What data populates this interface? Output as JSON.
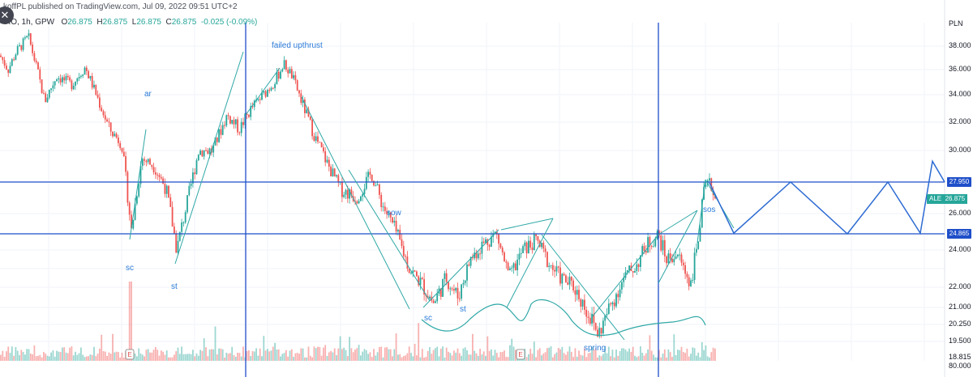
{
  "header": {
    "published": "koffPL published on TradingView.com, Jul 09, 2022 09:51 UTC+2",
    "symbol": "RO, 1h, GPW",
    "open_label": "O",
    "open": "26.875",
    "high_label": "H",
    "high": "26.875",
    "low_label": "L",
    "low": "26.875",
    "close_label": "C",
    "close": "26.875",
    "change": "-0.025 (-0.09%)",
    "close_icon": "close-icon"
  },
  "chart_data": {
    "type": "candlestick",
    "interval": "1h",
    "price_axis": {
      "unit": "PLN",
      "ticks": [
        "38.000",
        "36.000",
        "34.000",
        "32.000",
        "30.000",
        "26.000",
        "24.000",
        "22.000",
        "21.000",
        "20.250",
        "19.500",
        "18.815",
        "80.000"
      ],
      "scale": "log"
    },
    "price_labels": {
      "resistance": "27.950",
      "support": "24.865",
      "last_symbol": "ALE",
      "last": "26.875"
    },
    "price_series": {
      "t": [
        0,
        10,
        20,
        35,
        42,
        55,
        70,
        88,
        105,
        120,
        135,
        150,
        162,
        175,
        190,
        205,
        218,
        230,
        245,
        262,
        280,
        295,
        310,
        325,
        340,
        350,
        360,
        372,
        388,
        405,
        420,
        440,
        458,
        472,
        488,
        505,
        520,
        535,
        550,
        565,
        580,
        595,
        612,
        628,
        645,
        662,
        678,
        692,
        708,
        722,
        738,
        752,
        770,
        785,
        798,
        812,
        822,
        835,
        852,
        862,
        868,
        876,
        882
      ],
      "p": [
        37.2,
        36.0,
        37.5,
        38.8,
        37.0,
        33.5,
        35.5,
        34.8,
        36.2,
        33.8,
        31.5,
        30.5,
        25.0,
        29.5,
        29.0,
        27.5,
        24.0,
        26.5,
        30.0,
        30.0,
        32.5,
        31.5,
        33.0,
        34.0,
        35.2,
        36.5,
        35.5,
        33.5,
        31.0,
        29.0,
        27.5,
        27.0,
        28.5,
        26.5,
        25.0,
        23.0,
        22.2,
        21.2,
        22.5,
        21.5,
        23.5,
        24.3,
        24.9,
        22.5,
        24.0,
        24.5,
        23.2,
        22.5,
        22.0,
        21.0,
        19.8,
        21.0,
        22.5,
        23.2,
        24.3,
        24.8,
        23.5,
        23.8,
        22.2,
        24.9,
        27.3,
        27.9,
        26.875
      ]
    },
    "annotations": [
      {
        "text": "ar",
        "t": 183,
        "p": 34.0
      },
      {
        "text": "sc",
        "t": 160,
        "p": 23.0
      },
      {
        "text": "st",
        "t": 216,
        "p": 22.0
      },
      {
        "text": "failed upthrust",
        "t": 365,
        "p": 38.0
      },
      {
        "text": "sow",
        "t": 482,
        "p": 26.0
      },
      {
        "text": "sc",
        "t": 528,
        "p": 20.5
      },
      {
        "text": "st",
        "t": 572,
        "p": 20.9
      },
      {
        "text": "spring",
        "t": 750,
        "p": 19.2
      },
      {
        "text": "sos",
        "t": 872,
        "p": 26.2
      }
    ],
    "horizontal_levels": [
      27.95,
      24.865
    ],
    "vertical_markers_t": [
      303,
      812
    ],
    "projection_path": {
      "t": [
        875,
        905,
        975,
        1045,
        1095,
        1135,
        1150,
        1165
      ],
      "p": [
        27.9,
        24.9,
        27.95,
        24.865,
        27.95,
        24.9,
        29.3,
        27.95
      ]
    },
    "event_markers": [
      {
        "label": "E",
        "t": 160
      },
      {
        "label": "E",
        "t": 642
      }
    ],
    "legend": "none"
  },
  "colors": {
    "up": "#26a69a",
    "down": "#ef5350",
    "level": "#1f4fc9",
    "trendline": "#2fa8a6",
    "projection": "#2d6bd2",
    "annotation": "#2b7bd8",
    "grid": "#f0f3fa"
  }
}
